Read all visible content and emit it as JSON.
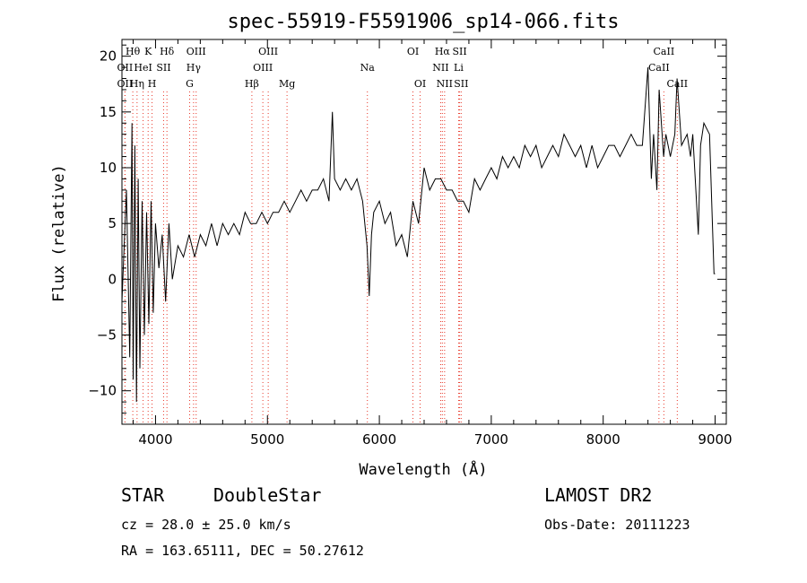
{
  "chart_data": {
    "type": "line",
    "title": "spec-55919-F5591906_sp14-066.fits",
    "xlabel": "Wavelength (Å)",
    "ylabel": "Flux (relative)",
    "xlim": [
      3700,
      9100
    ],
    "ylim": [
      -13,
      21.5
    ],
    "xticks": [
      4000,
      5000,
      6000,
      7000,
      8000,
      9000
    ],
    "yticks": [
      -10,
      -5,
      0,
      5,
      10,
      15,
      20
    ],
    "ytick_labels": [
      "−10",
      "−5",
      "0",
      "5",
      "10",
      "15",
      "20"
    ],
    "grid": false,
    "legend": "none",
    "series": [
      {
        "x": [
          3700,
          3740,
          3770,
          3790,
          3800,
          3815,
          3830,
          3845,
          3860,
          3880,
          3900,
          3920,
          3940,
          3960,
          3980,
          4000,
          4030,
          4060,
          4090,
          4120,
          4150,
          4200,
          4250,
          4300,
          4350,
          4400,
          4450,
          4500,
          4550,
          4600,
          4650,
          4700,
          4750,
          4800,
          4850,
          4900,
          4950,
          5000,
          5050,
          5100,
          5150,
          5200,
          5250,
          5300,
          5350,
          5400,
          5450,
          5500,
          5550,
          5580,
          5600,
          5650,
          5700,
          5750,
          5800,
          5850,
          5890,
          5910,
          5930,
          5950,
          6000,
          6050,
          6100,
          6150,
          6200,
          6250,
          6300,
          6350,
          6400,
          6450,
          6500,
          6550,
          6600,
          6650,
          6700,
          6750,
          6800,
          6850,
          6900,
          6950,
          7000,
          7050,
          7100,
          7150,
          7200,
          7250,
          7300,
          7350,
          7400,
          7450,
          7500,
          7550,
          7600,
          7650,
          7700,
          7750,
          7800,
          7850,
          7900,
          7950,
          8000,
          8050,
          8100,
          8150,
          8200,
          8250,
          8300,
          8350,
          8400,
          8430,
          8450,
          8480,
          8500,
          8540,
          8560,
          8600,
          8640,
          8660,
          8700,
          8750,
          8780,
          8800,
          8850,
          8870,
          8900,
          8950,
          8990,
          9000
        ],
        "y": [
          -2,
          8,
          -7,
          14,
          -9,
          12,
          -11,
          9,
          -8,
          7,
          -5,
          6,
          -4,
          7,
          -3,
          5,
          1,
          4,
          -2,
          5,
          0,
          3,
          2,
          4,
          2,
          4,
          3,
          5,
          3,
          5,
          4,
          5,
          4,
          6,
          5,
          5,
          6,
          5,
          6,
          6,
          7,
          6,
          7,
          8,
          7,
          8,
          8,
          9,
          7,
          15,
          9,
          8,
          9,
          8,
          9,
          7,
          3,
          -1.5,
          4,
          6,
          7,
          5,
          6,
          3,
          4,
          2,
          7,
          5,
          10,
          8,
          9,
          9,
          8,
          8,
          7,
          7,
          6,
          9,
          8,
          9,
          10,
          9,
          11,
          10,
          11,
          10,
          12,
          11,
          12,
          10,
          11,
          12,
          11,
          13,
          12,
          11,
          12,
          10,
          12,
          10,
          11,
          12,
          12,
          11,
          12,
          13,
          12,
          12,
          19,
          9,
          13,
          8,
          17,
          11,
          13,
          11,
          13,
          18,
          12,
          13,
          11,
          13,
          4,
          12,
          14,
          13,
          0.5,
          0.5
        ]
      }
    ],
    "line_groups": [
      {
        "name": "Hθ",
        "x": 3797,
        "row": 0
      },
      {
        "name": "K",
        "x": 3934,
        "row": 0
      },
      {
        "name": "Hδ",
        "x": 4102,
        "row": 0
      },
      {
        "name": "OIII",
        "x": 4363,
        "row": 0
      },
      {
        "name": "OIII",
        "x": 5007,
        "row": 0
      },
      {
        "name": "OI",
        "x": 6300,
        "row": 0
      },
      {
        "name": "Hα",
        "x": 6563,
        "row": 0
      },
      {
        "name": "SII",
        "x": 6717,
        "row": 0
      },
      {
        "name": "CaII",
        "x": 8542,
        "row": 0
      },
      {
        "name": "OII",
        "x": 3727,
        "row": 1
      },
      {
        "name": "HeI",
        "x": 3889,
        "row": 1
      },
      {
        "name": "SII",
        "x": 4072,
        "row": 1
      },
      {
        "name": "Hγ",
        "x": 4340,
        "row": 1
      },
      {
        "name": "OIII",
        "x": 4959,
        "row": 1
      },
      {
        "name": "Na",
        "x": 5893,
        "row": 1
      },
      {
        "name": "NII",
        "x": 6548,
        "row": 1
      },
      {
        "name": "Li",
        "x": 6708,
        "row": 1
      },
      {
        "name": "CaII",
        "x": 8498,
        "row": 1
      },
      {
        "name": "OII",
        "x": 3727,
        "row": 2
      },
      {
        "name": "Hη",
        "x": 3835,
        "row": 2
      },
      {
        "name": "H",
        "x": 3969,
        "row": 2
      },
      {
        "name": "G",
        "x": 4305,
        "row": 2
      },
      {
        "name": "Hβ",
        "x": 4861,
        "row": 2
      },
      {
        "name": "Mg",
        "x": 5175,
        "row": 2
      },
      {
        "name": "OI",
        "x": 6364,
        "row": 2
      },
      {
        "name": "NII",
        "x": 6583,
        "row": 2
      },
      {
        "name": "SII",
        "x": 6731,
        "row": 2
      },
      {
        "name": "CaII",
        "x": 8662,
        "row": 2
      }
    ],
    "line_marker_color": "#e8392b"
  },
  "info": {
    "class": "STAR",
    "subclass": "DoubleStar",
    "survey": "LAMOST DR2",
    "cz": "cz = 28.0 ± 25.0 km/s",
    "obs_date": "Obs-Date: 20111223",
    "coords": "RA = 163.65111, DEC =  50.27612"
  }
}
